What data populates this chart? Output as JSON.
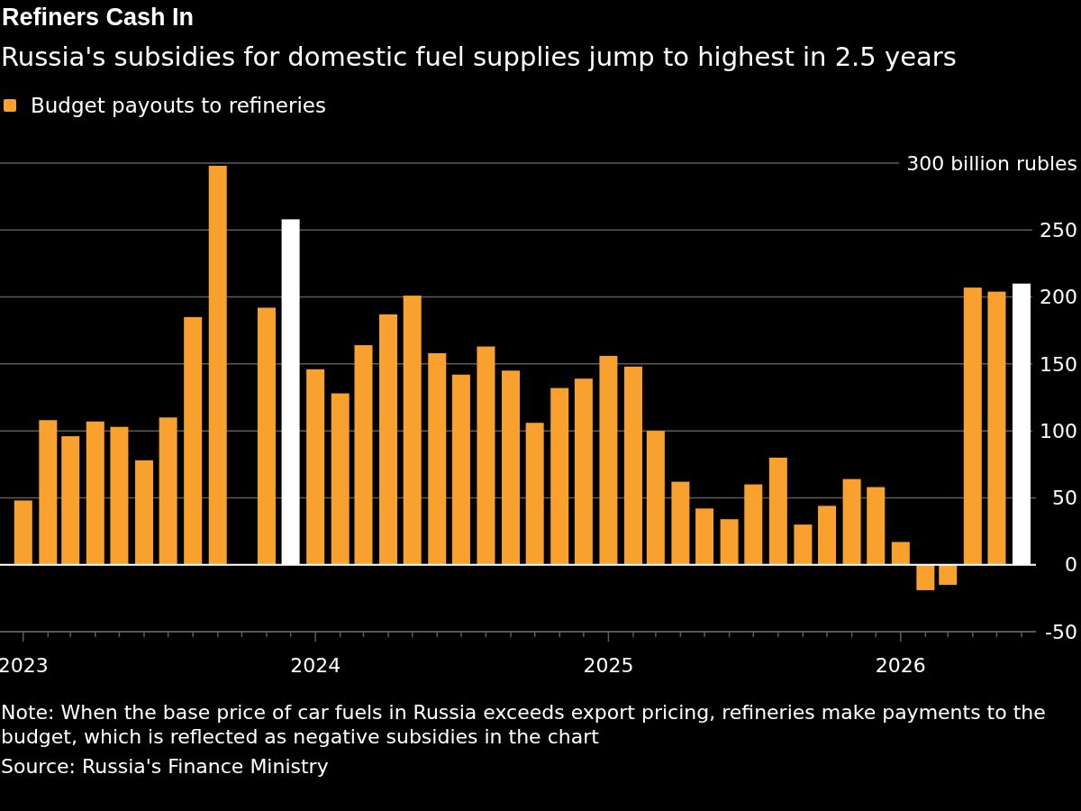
{
  "chart_data": {
    "type": "bar",
    "title": "Refiners Cash In",
    "subtitle": "Russia's subsidies for domestic fuel supplies jump to highest in 2.5 years",
    "x": [
      "2023-01",
      "2023-02",
      "2023-03",
      "2023-04",
      "2023-05",
      "2023-06",
      "2023-07",
      "2023-08",
      "2023-09",
      "2023-10",
      "2023-11",
      "2023-12",
      "2024-01",
      "2024-02",
      "2024-03",
      "2024-04",
      "2024-05",
      "2024-06",
      "2024-07",
      "2024-08",
      "2024-09",
      "2024-10",
      "2024-11",
      "2024-12",
      "2025-01",
      "2025-02",
      "2025-03",
      "2025-04",
      "2025-05",
      "2025-06",
      "2025-07",
      "2025-08",
      "2025-09",
      "2025-10",
      "2025-11",
      "2025-12",
      "2026-01",
      "2026-02",
      "2026-03",
      "2026-04",
      "2026-05",
      "2026-06"
    ],
    "series": [
      {
        "name": "Budget payouts to refineries",
        "color": "#f9a12e",
        "values": [
          48,
          108,
          96,
          107,
          103,
          78,
          110,
          185,
          298,
          null,
          192,
          258,
          146,
          128,
          164,
          187,
          201,
          158,
          142,
          163,
          145,
          106,
          132,
          139,
          156,
          148,
          100,
          62,
          42,
          34,
          60,
          80,
          30,
          44,
          64,
          58,
          17,
          -19,
          -15,
          207,
          204,
          210
        ],
        "colors": [
          "#f9a12e",
          "#f9a12e",
          "#f9a12e",
          "#f9a12e",
          "#f9a12e",
          "#f9a12e",
          "#f9a12e",
          "#f9a12e",
          "#f9a12e",
          null,
          "#f9a12e",
          "#ffffff",
          "#f9a12e",
          "#f9a12e",
          "#f9a12e",
          "#f9a12e",
          "#f9a12e",
          "#f9a12e",
          "#f9a12e",
          "#f9a12e",
          "#f9a12e",
          "#f9a12e",
          "#f9a12e",
          "#f9a12e",
          "#f9a12e",
          "#f9a12e",
          "#f9a12e",
          "#f9a12e",
          "#f9a12e",
          "#f9a12e",
          "#f9a12e",
          "#f9a12e",
          "#f9a12e",
          "#f9a12e",
          "#f9a12e",
          "#f9a12e",
          "#f9a12e",
          "#f9a12e",
          "#f9a12e",
          "#f9a12e",
          "#f9a12e",
          "#ffffff"
        ]
      }
    ],
    "xlim": [
      "2022-12-03",
      "2026-06-19"
    ],
    "xticks": [
      {
        "value": "2023-01",
        "label": "2023"
      },
      {
        "value": "2023-02",
        "label": null
      },
      {
        "value": "2023-03",
        "label": null
      },
      {
        "value": "2023-04",
        "label": null
      },
      {
        "value": "2023-05",
        "label": null
      },
      {
        "value": "2023-06",
        "label": null
      },
      {
        "value": "2023-07",
        "label": null
      },
      {
        "value": "2023-08",
        "label": null
      },
      {
        "value": "2023-09",
        "label": null
      },
      {
        "value": "2023-10",
        "label": null
      },
      {
        "value": "2023-11",
        "label": null
      },
      {
        "value": "2023-12",
        "label": null
      },
      {
        "value": "2024-01",
        "label": "2024"
      },
      {
        "value": "2024-02",
        "label": null
      },
      {
        "value": "2024-03",
        "label": null
      },
      {
        "value": "2024-04",
        "label": null
      },
      {
        "value": "2024-05",
        "label": null
      },
      {
        "value": "2024-06",
        "label": null
      },
      {
        "value": "2024-07",
        "label": null
      },
      {
        "value": "2024-08",
        "label": null
      },
      {
        "value": "2024-09",
        "label": null
      },
      {
        "value": "2024-10",
        "label": null
      },
      {
        "value": "2024-11",
        "label": null
      },
      {
        "value": "2024-12",
        "label": null
      },
      {
        "value": "2025-01",
        "label": "2025"
      },
      {
        "value": "2025-02",
        "label": null
      },
      {
        "value": "2025-03",
        "label": null
      },
      {
        "value": "2025-04",
        "label": null
      },
      {
        "value": "2025-05",
        "label": null
      },
      {
        "value": "2025-06",
        "label": null
      },
      {
        "value": "2025-07",
        "label": null
      },
      {
        "value": "2025-08",
        "label": null
      },
      {
        "value": "2025-09",
        "label": null
      },
      {
        "value": "2025-10",
        "label": null
      },
      {
        "value": "2025-11",
        "label": null
      },
      {
        "value": "2025-12",
        "label": null
      },
      {
        "value": "2026-01",
        "label": "2026"
      },
      {
        "value": "2026-02",
        "label": null
      },
      {
        "value": "2026-03",
        "label": null
      },
      {
        "value": "2026-04",
        "label": null
      },
      {
        "value": "2026-05",
        "label": null
      },
      {
        "value": "2026-06",
        "label": null
      }
    ],
    "ylim": [
      -50,
      300
    ],
    "yticks": [
      -50,
      0,
      50,
      100,
      150,
      200,
      250,
      {
        "value": 300,
        "label": "300 billion rubles"
      }
    ],
    "grid": "y",
    "legend": "top left",
    "annotations": [
      "Note: When the base price of car fuels in Russia exceeds export pricing, refineries make payments to the budget, which is reflected as negative subsidies in the chart",
      "Source: Russia's Finance Ministry"
    ]
  }
}
